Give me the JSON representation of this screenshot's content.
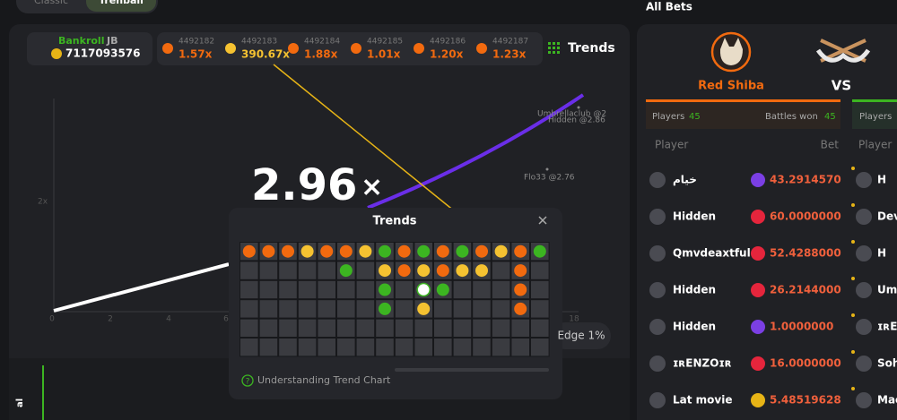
{
  "tabs": [
    "Classic",
    "Trenball"
  ],
  "all_bets": "All Bets",
  "bankroll": {
    "label": "Bankroll",
    "unit": "JB",
    "amount": "7117093576"
  },
  "history": [
    {
      "id": "4492182",
      "multiplier": "1.57x",
      "color": "#f26a0f"
    },
    {
      "id": "4492183",
      "multiplier": "390.67x",
      "color": "#f5c231"
    },
    {
      "id": "4492184",
      "multiplier": "1.88x",
      "color": "#f26a0f"
    },
    {
      "id": "4492185",
      "multiplier": "1.01x",
      "color": "#f26a0f"
    },
    {
      "id": "4492186",
      "multiplier": "1.20x",
      "color": "#f26a0f"
    },
    {
      "id": "4492187",
      "multiplier": "1.23x",
      "color": "#f26a0f"
    }
  ],
  "trends_button": "Trends",
  "graph": {
    "multiplier": "2.96",
    "symbol": "×",
    "y_label": "2x",
    "x_ticks": [
      "0",
      "2",
      "4",
      "6",
      "18"
    ],
    "players": [
      "Umbrellaclub @2",
      "Hidden @2.86",
      "Flo33 @2.76"
    ],
    "edge": "Edge 1%"
  },
  "modal": {
    "title": "Trends",
    "help": "Understanding Trend Chart",
    "grid": [
      [
        "#f26a0f",
        "#f26a0f",
        "#f26a0f",
        "#f5c231",
        "#f26a0f",
        "#f26a0f",
        "#f5c231",
        "#3cb521",
        "#f26a0f",
        "#3cb521",
        "#f26a0f",
        "#3cb521",
        "#f26a0f",
        "#f5c231",
        "#f26a0f",
        "#3cb521"
      ],
      [
        null,
        null,
        null,
        null,
        null,
        "#3cb521",
        null,
        "#f5c231",
        "#f26a0f",
        "#f5c231",
        "#f26a0f",
        "#f5c231",
        "#f5c231",
        null,
        "#f26a0f",
        null
      ],
      [
        null,
        null,
        null,
        null,
        null,
        null,
        null,
        "#3cb521",
        null,
        "#ffffff",
        "#3cb521",
        null,
        null,
        null,
        "#f26a0f",
        null
      ],
      [
        null,
        null,
        null,
        null,
        null,
        null,
        null,
        "#3cb521",
        null,
        "#f5c231",
        null,
        null,
        null,
        null,
        "#f26a0f",
        null
      ],
      [
        null,
        null,
        null,
        null,
        null,
        null,
        null,
        null,
        null,
        null,
        null,
        null,
        null,
        null,
        null,
        null
      ],
      [
        null,
        null,
        null,
        null,
        null,
        null,
        null,
        null,
        null,
        null,
        null,
        null,
        null,
        null,
        null,
        null
      ]
    ]
  },
  "battle": {
    "team": "Red Shiba",
    "vs": "VS",
    "players_label": "Players",
    "players": "45",
    "won_label": "Battles won",
    "won": "45",
    "other_players_label": "Players"
  },
  "bets": {
    "player_header": "Player",
    "bet_header": "Bet",
    "other_player_header": "Player",
    "rows": [
      {
        "name": "خيام",
        "bet": "43.2914570",
        "coin": "#7b3fe4",
        "other": "H"
      },
      {
        "name": "Hidden",
        "bet": "60.0000000",
        "coin": "#e5253c",
        "other": "Dev"
      },
      {
        "name": "Qmvdeaxtful",
        "bet": "52.4288000",
        "coin": "#e5253c",
        "other": "H"
      },
      {
        "name": "Hidden",
        "bet": "26.2144000",
        "coin": "#e5253c",
        "other": "Um"
      },
      {
        "name": "Hidden",
        "bet": "1.0000000",
        "coin": "#7b3fe4",
        "other": "ɪʀEN"
      },
      {
        "name": "ɪʀENZOɪʀ",
        "bet": "16.0000000",
        "coin": "#e5253c",
        "other": "Soh"
      },
      {
        "name": "Lat movie",
        "bet": "5.48519628",
        "coin": "#e7b416",
        "other": "Mac"
      }
    ]
  },
  "side_label": "al"
}
